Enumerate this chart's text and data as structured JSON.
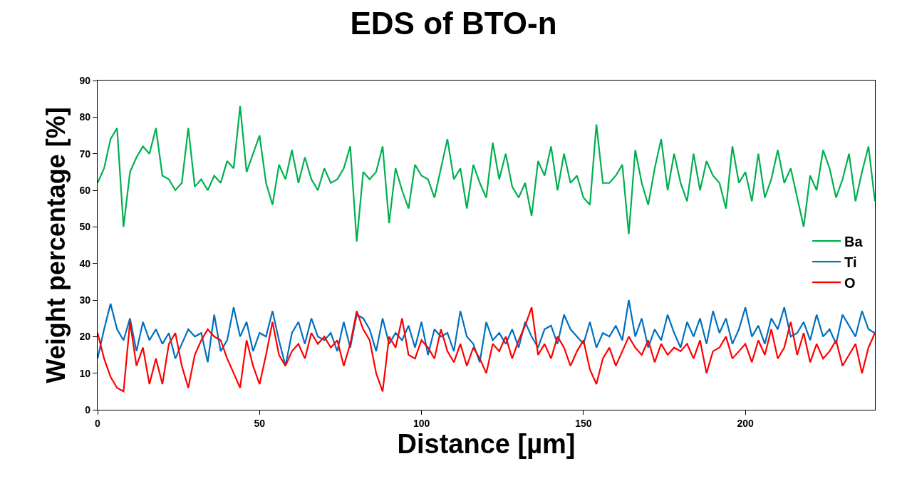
{
  "chart_data": {
    "type": "line",
    "title": "EDS of BTO-n",
    "xlabel": "Distance [µm]",
    "ylabel": "Weight percentage [%]",
    "x": [
      0,
      2,
      4,
      6,
      8,
      10,
      12,
      14,
      16,
      18,
      20,
      22,
      24,
      26,
      28,
      30,
      32,
      34,
      36,
      38,
      40,
      42,
      44,
      46,
      48,
      50,
      52,
      54,
      56,
      58,
      60,
      62,
      64,
      66,
      68,
      70,
      72,
      74,
      76,
      78,
      80,
      82,
      84,
      86,
      88,
      90,
      92,
      94,
      96,
      98,
      100,
      102,
      104,
      106,
      108,
      110,
      112,
      114,
      116,
      118,
      120,
      122,
      124,
      126,
      128,
      130,
      132,
      134,
      136,
      138,
      140,
      142,
      144,
      146,
      148,
      150,
      152,
      154,
      156,
      158,
      160,
      162,
      164,
      166,
      168,
      170,
      172,
      174,
      176,
      178,
      180,
      182,
      184,
      186,
      188,
      190,
      192,
      194,
      196,
      198,
      200,
      202,
      204,
      206,
      208,
      210,
      212,
      214,
      216,
      218,
      220,
      222,
      224,
      226,
      228,
      230,
      232,
      234,
      236,
      238,
      240
    ],
    "series": [
      {
        "name": "Ba",
        "color": "#00b050",
        "values": [
          62,
          66,
          74,
          77,
          50,
          65,
          69,
          72,
          70,
          77,
          64,
          63,
          60,
          62,
          77,
          61,
          63,
          60,
          64,
          62,
          68,
          66,
          83,
          65,
          70,
          75,
          62,
          56,
          67,
          63,
          71,
          62,
          69,
          63,
          60,
          66,
          62,
          63,
          66,
          72,
          46,
          65,
          63,
          65,
          72,
          51,
          66,
          60,
          55,
          67,
          64,
          63,
          58,
          66,
          74,
          63,
          66,
          55,
          67,
          62,
          58,
          73,
          63,
          70,
          61,
          58,
          62,
          53,
          68,
          64,
          72,
          60,
          70,
          62,
          64,
          58,
          56,
          78,
          62,
          62,
          64,
          67,
          48,
          71,
          62,
          56,
          66,
          74,
          60,
          70,
          62,
          57,
          70,
          60,
          68,
          64,
          62,
          55,
          72,
          62,
          65,
          57,
          70,
          58,
          63,
          71,
          62,
          66,
          58,
          50,
          64,
          60,
          71,
          66,
          58,
          63,
          70,
          57,
          65,
          72,
          57
        ]
      },
      {
        "name": "Ti",
        "color": "#0070c0",
        "values": [
          14,
          22,
          29,
          22,
          19,
          25,
          16,
          24,
          19,
          22,
          18,
          21,
          14,
          18,
          22,
          20,
          21,
          13,
          26,
          16,
          19,
          28,
          20,
          24,
          16,
          21,
          20,
          27,
          19,
          12,
          21,
          24,
          18,
          25,
          20,
          19,
          21,
          16,
          24,
          17,
          26,
          25,
          22,
          16,
          25,
          18,
          21,
          19,
          23,
          17,
          24,
          15,
          22,
          20,
          21,
          16,
          27,
          20,
          18,
          13,
          24,
          19,
          21,
          18,
          22,
          17,
          24,
          20,
          17,
          22,
          23,
          18,
          26,
          22,
          20,
          18,
          24,
          17,
          21,
          20,
          23,
          19,
          30,
          20,
          25,
          17,
          22,
          19,
          26,
          21,
          17,
          24,
          20,
          25,
          18,
          27,
          21,
          25,
          18,
          22,
          28,
          20,
          23,
          18,
          25,
          22,
          28,
          20,
          21,
          24,
          19,
          26,
          20,
          22,
          18,
          26,
          23,
          20,
          27,
          22,
          21
        ]
      },
      {
        "name": "O",
        "color": "#ff0000",
        "values": [
          21,
          14,
          9,
          6,
          5,
          24,
          12,
          17,
          7,
          14,
          7,
          18,
          21,
          12,
          6,
          15,
          19,
          22,
          20,
          19,
          14,
          10,
          6,
          19,
          12,
          7,
          15,
          24,
          15,
          12,
          16,
          18,
          14,
          21,
          18,
          20,
          17,
          19,
          12,
          18,
          27,
          22,
          19,
          10,
          5,
          20,
          17,
          25,
          15,
          14,
          19,
          17,
          14,
          22,
          16,
          13,
          18,
          12,
          17,
          14,
          10,
          18,
          16,
          20,
          14,
          19,
          23,
          28,
          15,
          18,
          14,
          20,
          17,
          12,
          16,
          19,
          11,
          7,
          14,
          17,
          12,
          16,
          20,
          17,
          15,
          19,
          13,
          18,
          15,
          17,
          16,
          18,
          14,
          19,
          10,
          16,
          17,
          20,
          14,
          16,
          18,
          13,
          19,
          15,
          22,
          14,
          17,
          24,
          15,
          21,
          13,
          18,
          14,
          16,
          19,
          12,
          15,
          18,
          10,
          17,
          21
        ]
      }
    ],
    "xlim": [
      0,
      240
    ],
    "xticks": [
      0,
      50,
      100,
      150,
      200
    ],
    "ylim": [
      0,
      90
    ],
    "yticks": [
      0,
      10,
      20,
      30,
      40,
      50,
      60,
      70,
      80,
      90
    ],
    "grid": false,
    "legend": "right",
    "marker": "none",
    "line_style": "solid"
  }
}
